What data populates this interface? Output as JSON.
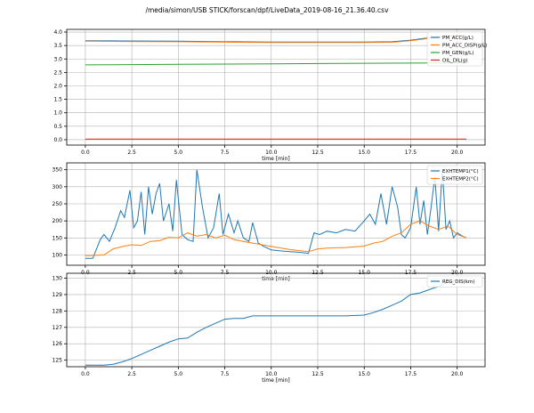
{
  "figure_title": "/media/simon/USB STICK/forscan/dpf/LiveData_2019-08-16_21.36.40.csv",
  "colors": {
    "blue": "#1f77b4",
    "orange": "#ff7f0e",
    "green": "#2ca02c",
    "red": "#d62728",
    "grid": "#b0b0b0",
    "axis": "#000000"
  },
  "chart_data": [
    {
      "type": "line",
      "xlabel": "time [min]",
      "xlim": [
        -1.0,
        21.5
      ],
      "ylim": [
        -0.2,
        4.1
      ],
      "grid": true,
      "legend_position": "top-right",
      "xticks": [
        0.0,
        2.5,
        5.0,
        7.5,
        10.0,
        12.5,
        15.0,
        17.5,
        20.0
      ],
      "xtick_labels": [
        "0.0",
        "2.5",
        "5.0",
        "7.5",
        "10.0",
        "12.5",
        "15.0",
        "17.5",
        "20.0"
      ],
      "yticks": [
        0.0,
        0.5,
        1.0,
        1.5,
        2.0,
        2.5,
        3.0,
        3.5,
        4.0
      ],
      "ytick_labels": [
        "0.0",
        "0.5",
        "1.0",
        "1.5",
        "2.0",
        "2.5",
        "3.0",
        "3.5",
        "4.0"
      ],
      "series": [
        {
          "name": "PM_ACC(g/L)",
          "color": "#1f77b4",
          "x": [
            0,
            2,
            5,
            8,
            10,
            12.5,
            15,
            16.5,
            17.5,
            18.5,
            19.5,
            20.5
          ],
          "y": [
            3.68,
            3.67,
            3.66,
            3.64,
            3.63,
            3.63,
            3.63,
            3.64,
            3.7,
            3.79,
            3.86,
            3.88
          ]
        },
        {
          "name": "PM_ACC_DISP(g/L)",
          "color": "#ff7f0e",
          "x": [
            0,
            2,
            5,
            8,
            10,
            12.5,
            15,
            16.5,
            17.5,
            18.5,
            19.5,
            20.5
          ],
          "y": [
            3.66,
            3.65,
            3.64,
            3.62,
            3.61,
            3.61,
            3.61,
            3.62,
            3.68,
            3.77,
            3.84,
            3.86
          ]
        },
        {
          "name": "PM_GEN(g/L)",
          "color": "#2ca02c",
          "x": [
            0,
            5,
            10,
            15,
            20.5
          ],
          "y": [
            2.78,
            2.8,
            2.82,
            2.84,
            2.86
          ]
        },
        {
          "name": "OIL_DIL(g)",
          "color": "#d62728",
          "x": [
            0,
            20.5
          ],
          "y": [
            0.02,
            0.02
          ]
        }
      ]
    },
    {
      "type": "line",
      "xlabel": "time [min]",
      "xlim": [
        -1.0,
        21.5
      ],
      "ylim": [
        70,
        370
      ],
      "grid": true,
      "legend_position": "top-right",
      "xticks": [
        0.0,
        2.5,
        5.0,
        7.5,
        10.0,
        12.5,
        15.0,
        17.5,
        20.0
      ],
      "xtick_labels": [
        "0.0",
        "2.5",
        "5.0",
        "7.5",
        "10.0",
        "12.5",
        "15.0",
        "17.5",
        "20.0"
      ],
      "yticks": [
        100,
        150,
        200,
        250,
        300,
        350
      ],
      "ytick_labels": [
        "100",
        "150",
        "200",
        "250",
        "300",
        "350"
      ],
      "series": [
        {
          "name": "EXHTEMP1(°C)",
          "color": "#1f77b4",
          "x": [
            0,
            0.4,
            0.8,
            1.0,
            1.3,
            1.6,
            1.9,
            2.1,
            2.4,
            2.6,
            2.8,
            3.0,
            3.2,
            3.4,
            3.6,
            3.8,
            4.0,
            4.2,
            4.5,
            4.7,
            4.9,
            5.2,
            5.5,
            5.8,
            6.0,
            6.3,
            6.6,
            6.9,
            7.2,
            7.4,
            7.7,
            8.0,
            8.2,
            8.5,
            8.8,
            9.0,
            9.3,
            9.6,
            9.8,
            10.0,
            10.5,
            11.0,
            11.5,
            12.0,
            12.3,
            12.6,
            13.0,
            13.5,
            14.0,
            14.5,
            15.0,
            15.3,
            15.6,
            15.9,
            16.2,
            16.5,
            16.8,
            17.0,
            17.2,
            17.5,
            17.8,
            18.0,
            18.2,
            18.4,
            18.6,
            18.8,
            19.0,
            19.2,
            19.4,
            19.6,
            19.8,
            20.0,
            20.3,
            20.5
          ],
          "y": [
            90,
            90,
            145,
            160,
            140,
            180,
            230,
            210,
            290,
            180,
            200,
            285,
            160,
            300,
            220,
            280,
            310,
            200,
            250,
            170,
            320,
            160,
            145,
            140,
            350,
            240,
            150,
            180,
            280,
            160,
            220,
            165,
            200,
            150,
            140,
            195,
            135,
            125,
            120,
            115,
            112,
            110,
            108,
            105,
            165,
            160,
            170,
            165,
            175,
            170,
            200,
            220,
            190,
            280,
            190,
            300,
            240,
            160,
            150,
            180,
            300,
            190,
            260,
            160,
            240,
            330,
            170,
            350,
            175,
            200,
            150,
            165,
            155,
            150
          ],
          "y_label_values_note": ""
        },
        {
          "name": "EXHTEMP2(°C)",
          "color": "#ff7f0e",
          "x": [
            0,
            1,
            1.5,
            2,
            2.5,
            3,
            3.5,
            4,
            4.5,
            5,
            5.5,
            6,
            6.5,
            7,
            7.5,
            8,
            8.5,
            9,
            9.5,
            10,
            11,
            12,
            12.5,
            13,
            14,
            15,
            15.5,
            16,
            16.5,
            17,
            17.5,
            18,
            18.5,
            19,
            19.5,
            20,
            20.5
          ],
          "y": [
            98,
            100,
            118,
            125,
            130,
            128,
            140,
            142,
            152,
            150,
            165,
            155,
            160,
            150,
            158,
            145,
            140,
            135,
            130,
            125,
            116,
            110,
            118,
            120,
            122,
            126,
            135,
            140,
            155,
            165,
            190,
            200,
            185,
            175,
            185,
            160,
            150
          ]
        }
      ]
    },
    {
      "type": "line",
      "xlabel": "time [min]",
      "xlim": [
        -1.0,
        21.5
      ],
      "ylim": [
        124.6,
        130.3
      ],
      "grid": true,
      "legend_position": "top-right",
      "xticks": [
        0.0,
        2.5,
        5.0,
        7.5,
        10.0,
        12.5,
        15.0,
        17.5,
        20.0
      ],
      "xtick_labels": [
        "0.0",
        "2.5",
        "5.0",
        "7.5",
        "10.0",
        "12.5",
        "15.0",
        "17.5",
        "20.0"
      ],
      "yticks": [
        125,
        126,
        127,
        128,
        129,
        130
      ],
      "ytick_labels": [
        "125",
        "126",
        "127",
        "128",
        "129",
        "130"
      ],
      "series": [
        {
          "name": "REG_DIS(km)",
          "color": "#1f77b4",
          "x": [
            0,
            1.0,
            1.5,
            2.0,
            2.5,
            3.0,
            3.5,
            4.0,
            4.5,
            5.0,
            5.5,
            6.0,
            6.5,
            7.0,
            7.5,
            8.0,
            8.5,
            9.0,
            10.0,
            11.0,
            12.0,
            13.0,
            14.0,
            15.0,
            15.5,
            16.0,
            16.5,
            17.0,
            17.5,
            18.0,
            18.5,
            19.0,
            19.5,
            20.0
          ],
          "y": [
            124.7,
            124.7,
            124.75,
            124.9,
            125.1,
            125.35,
            125.6,
            125.85,
            126.1,
            126.3,
            126.35,
            126.7,
            127.0,
            127.25,
            127.5,
            127.55,
            127.55,
            127.7,
            127.7,
            127.7,
            127.7,
            127.7,
            127.7,
            127.75,
            127.9,
            128.1,
            128.35,
            128.6,
            129.0,
            129.1,
            129.3,
            129.5,
            129.75,
            129.9
          ]
        }
      ]
    }
  ]
}
